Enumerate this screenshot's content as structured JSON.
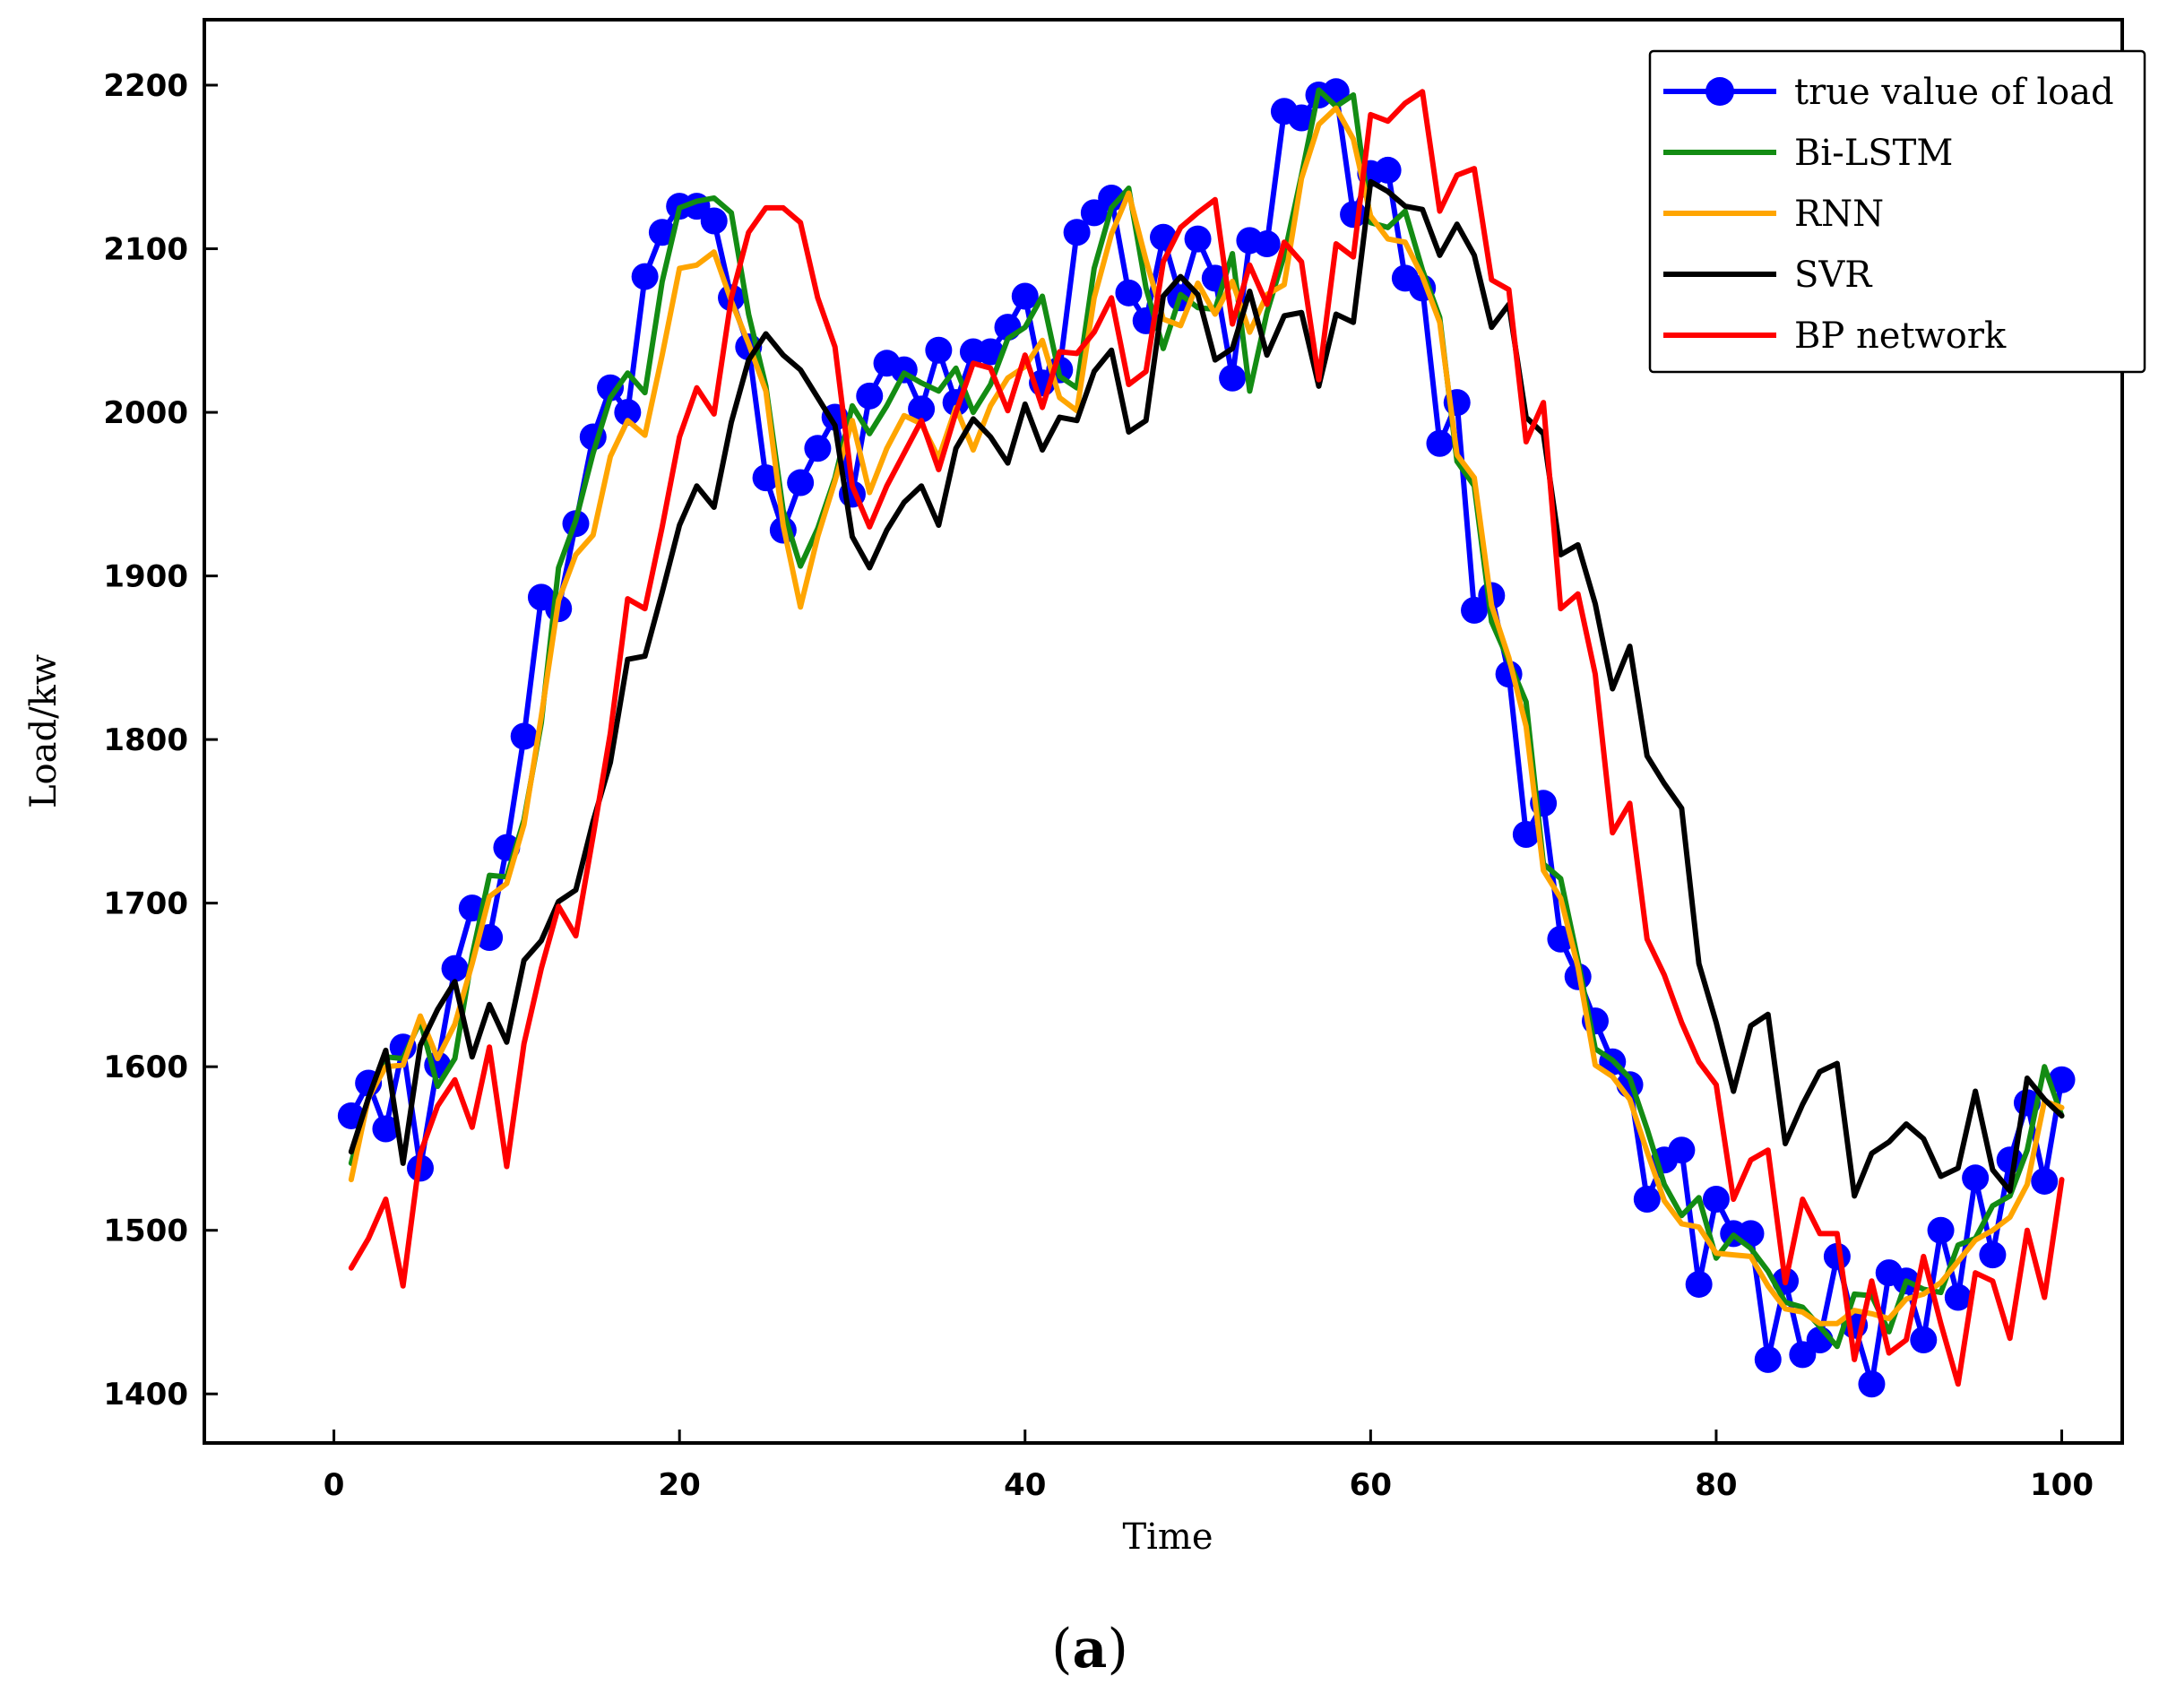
{
  "chart_data": {
    "type": "line",
    "title": "",
    "xlabel": "Time",
    "ylabel": "Load/kw",
    "xlim": [
      -7.5,
      103.5
    ],
    "ylim": [
      1370,
      2240
    ],
    "x_ticks": [
      0,
      20,
      40,
      60,
      80,
      100
    ],
    "y_ticks": [
      1400,
      1500,
      1600,
      1700,
      1800,
      1900,
      2000,
      2100,
      2200
    ],
    "grid": false,
    "legend_position": "top-right",
    "caption": {
      "open": "(",
      "label": "a",
      "close": ")"
    },
    "series": [
      {
        "name": "true value of load",
        "color": "#0000ff",
        "marker": "circle",
        "values": [
          1570,
          1590,
          1562,
          1612,
          1538,
          1601,
          1660,
          1697,
          1679,
          1734,
          1802,
          1887,
          1880,
          1932,
          1985,
          2015,
          2000,
          2083,
          2110,
          2126,
          2126,
          2117,
          2070,
          2040,
          1960,
          1928,
          1957,
          1978,
          1997,
          1950,
          2010,
          2030,
          2026,
          2002,
          2038,
          2006,
          2037,
          2037,
          2052,
          2071,
          2018,
          2026,
          2110,
          2122,
          2131,
          2073,
          2056,
          2107,
          2070,
          2106,
          2082,
          2021,
          2105,
          2103,
          2184,
          2180,
          2194,
          2196,
          2121,
          2146,
          2148,
          2082,
          2076,
          1981,
          2006,
          1879,
          1888,
          1840,
          1742,
          1761,
          1678,
          1655,
          1628,
          1603,
          1589,
          1519,
          1543,
          1549,
          1467,
          1519,
          1498,
          1498,
          1421,
          1469,
          1424,
          1433,
          1484,
          1442,
          1406,
          1474,
          1469,
          1433,
          1500,
          1459,
          1532,
          1485,
          1543,
          1578,
          1530,
          1592
        ]
      },
      {
        "name": "Bi-LSTM",
        "color": "#138c13",
        "marker": "none",
        "values": [
          1541,
          1581,
          1606,
          1605,
          1628,
          1588,
          1605,
          1668,
          1717,
          1716,
          1751,
          1810,
          1905,
          1934,
          1975,
          2009,
          2024,
          2012,
          2080,
          2125,
          2129,
          2131,
          2122,
          2060,
          2016,
          1940,
          1906,
          1929,
          1960,
          2004,
          1987,
          2004,
          2024,
          2018,
          2013,
          2027,
          2000,
          2017,
          2045,
          2052,
          2071,
          2022,
          2015,
          2088,
          2125,
          2137,
          2076,
          2039,
          2072,
          2064,
          2063,
          2097,
          2013,
          2061,
          2096,
          2145,
          2197,
          2187,
          2194,
          2116,
          2113,
          2123,
          2087,
          2058,
          1970,
          1955,
          1872,
          1848,
          1823,
          1724,
          1715,
          1665,
          1611,
          1604,
          1593,
          1562,
          1528,
          1509,
          1520,
          1483,
          1497,
          1489,
          1475,
          1456,
          1453,
          1441,
          1429,
          1461,
          1460,
          1438,
          1469,
          1464,
          1462,
          1491,
          1495,
          1515,
          1521,
          1549,
          1600,
          1570
        ]
      },
      {
        "name": "RNN",
        "color": "#ffa500",
        "marker": "none",
        "values": [
          1531,
          1581,
          1600,
          1601,
          1631,
          1605,
          1626,
          1663,
          1704,
          1712,
          1748,
          1814,
          1885,
          1913,
          1925,
          1973,
          1995,
          1986,
          2035,
          2088,
          2090,
          2098,
          2068,
          2042,
          2013,
          1931,
          1881,
          1924,
          1958,
          1995,
          1951,
          1978,
          1998,
          1993,
          1972,
          2003,
          1977,
          2004,
          2021,
          2028,
          2044,
          2009,
          2001,
          2070,
          2109,
          2134,
          2093,
          2057,
          2053,
          2079,
          2060,
          2080,
          2049,
          2072,
          2078,
          2143,
          2176,
          2186,
          2167,
          2120,
          2106,
          2104,
          2083,
          2055,
          1974,
          1960,
          1882,
          1850,
          1808,
          1720,
          1703,
          1661,
          1601,
          1594,
          1580,
          1548,
          1518,
          1504,
          1502,
          1486,
          1485,
          1484,
          1466,
          1452,
          1450,
          1443,
          1443,
          1451,
          1449,
          1446,
          1458,
          1461,
          1468,
          1481,
          1494,
          1500,
          1508,
          1528,
          1579,
          1575
        ]
      },
      {
        "name": "SVR",
        "color": "#000000",
        "marker": "none",
        "values": [
          1548,
          1581,
          1610,
          1541,
          1613,
          1635,
          1652,
          1606,
          1638,
          1615,
          1665,
          1677,
          1701,
          1708,
          1750,
          1786,
          1849,
          1851,
          1890,
          1931,
          1955,
          1942,
          1994,
          2032,
          2048,
          2035,
          2026,
          2009,
          1992,
          1924,
          1905,
          1928,
          1945,
          1955,
          1931,
          1978,
          1996,
          1985,
          1969,
          2005,
          1977,
          1997,
          1995,
          2025,
          2038,
          1988,
          1995,
          2071,
          2083,
          2072,
          2032,
          2039,
          2074,
          2035,
          2059,
          2061,
          2016,
          2060,
          2055,
          2141,
          2135,
          2126,
          2124,
          2096,
          2115,
          2096,
          2052,
          2066,
          1997,
          1987,
          1913,
          1919,
          1883,
          1831,
          1857,
          1790,
          1773,
          1758,
          1663,
          1627,
          1585,
          1625,
          1632,
          1553,
          1577,
          1597,
          1602,
          1521,
          1547,
          1554,
          1565,
          1556,
          1533,
          1538,
          1585,
          1537,
          1524,
          1593,
          1580,
          1570
        ]
      },
      {
        "name": "BP network",
        "color": "#ff0000",
        "marker": "none",
        "values": [
          1477,
          1495,
          1519,
          1466,
          1547,
          1576,
          1592,
          1563,
          1612,
          1539,
          1614,
          1660,
          1698,
          1680,
          1741,
          1804,
          1886,
          1880,
          1930,
          1985,
          2015,
          1999,
          2070,
          2110,
          2125,
          2125,
          2116,
          2070,
          2040,
          1955,
          1930,
          1955,
          1975,
          1995,
          1965,
          2000,
          2030,
          2027,
          2001,
          2035,
          2003,
          2037,
          2036,
          2049,
          2070,
          2017,
          2025,
          2092,
          2113,
          2122,
          2130,
          2054,
          2090,
          2066,
          2104,
          2092,
          2020,
          2103,
          2095,
          2182,
          2178,
          2189,
          2196,
          2123,
          2145,
          2149,
          2081,
          2075,
          1982,
          2006,
          1880,
          1889,
          1840,
          1743,
          1761,
          1678,
          1656,
          1627,
          1603,
          1589,
          1519,
          1543,
          1549,
          1468,
          1519,
          1498,
          1498,
          1421,
          1469,
          1425,
          1433,
          1484,
          1443,
          1406,
          1474,
          1469,
          1434,
          1500,
          1459,
          1531
        ]
      }
    ]
  }
}
